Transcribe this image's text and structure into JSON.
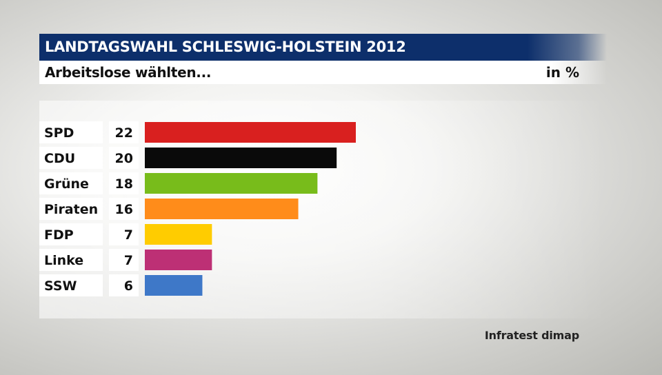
{
  "header": {
    "title": "LANDTAGSWAHL SCHLESWIG-HOLSTEIN 2012",
    "subtitle": "Arbeitslose wählten...",
    "unit": "in %"
  },
  "source": "Infratest dimap",
  "colors": {
    "title_bar": "#0d2f6b",
    "label_box": "#ffffff"
  },
  "chart_data": {
    "type": "bar",
    "orientation": "horizontal",
    "title": "Arbeitslose wählten...",
    "unit": "in %",
    "categories": [
      "SPD",
      "CDU",
      "Grüne",
      "Piraten",
      "FDP",
      "Linke",
      "SSW"
    ],
    "values": [
      22,
      20,
      18,
      16,
      7,
      7,
      6
    ],
    "colors": [
      "#d9201f",
      "#0a0a0a",
      "#78bc1b",
      "#ff8c1a",
      "#ffcc00",
      "#bd3075",
      "#3e78c8"
    ],
    "xlim": [
      0,
      22
    ],
    "grid": false,
    "legend": "none"
  }
}
